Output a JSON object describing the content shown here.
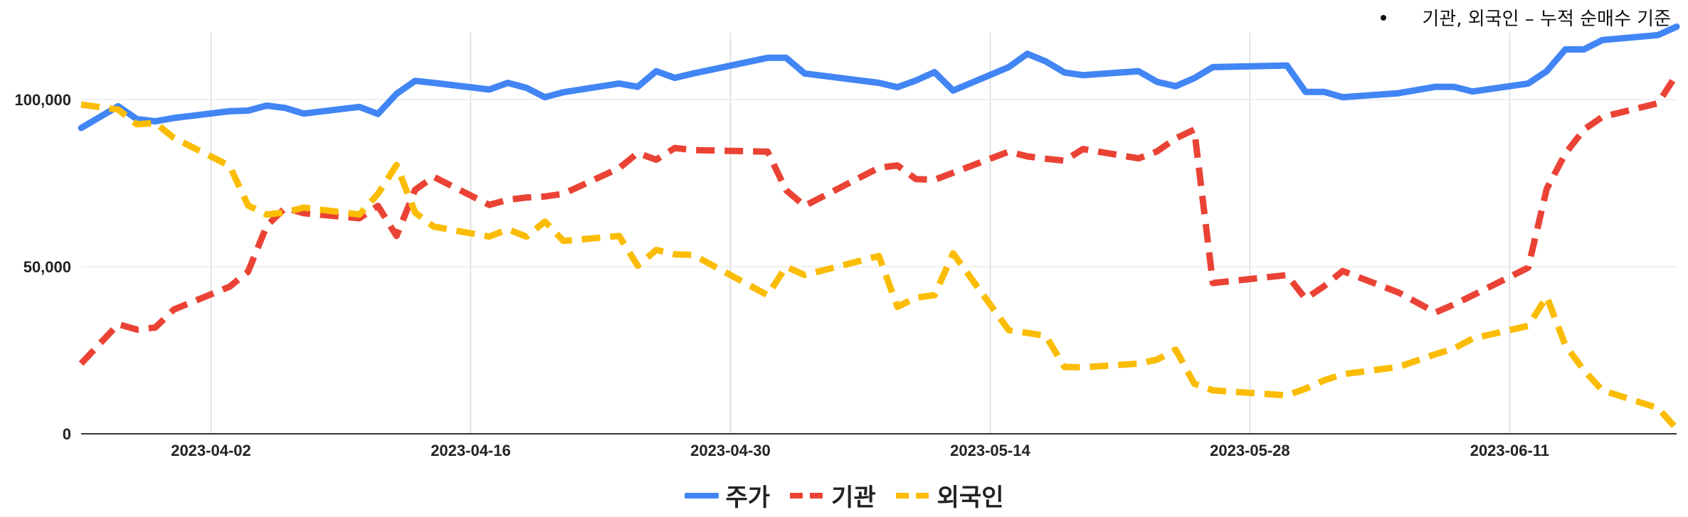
{
  "annotation": "기관, 외국인 – 누적 순매수 기준",
  "chart_data": {
    "type": "line",
    "x": [
      "2023-03-26",
      "2023-03-28",
      "2023-03-29",
      "2023-03-30",
      "2023-03-31",
      "2023-04-03",
      "2023-04-04",
      "2023-04-05",
      "2023-04-06",
      "2023-04-07",
      "2023-04-10",
      "2023-04-11",
      "2023-04-12",
      "2023-04-13",
      "2023-04-14",
      "2023-04-17",
      "2023-04-18",
      "2023-04-19",
      "2023-04-20",
      "2023-04-21",
      "2023-04-24",
      "2023-04-25",
      "2023-04-26",
      "2023-04-27",
      "2023-04-28",
      "2023-05-02",
      "2023-05-03",
      "2023-05-04",
      "2023-05-08",
      "2023-05-09",
      "2023-05-10",
      "2023-05-11",
      "2023-05-12",
      "2023-05-15",
      "2023-05-16",
      "2023-05-17",
      "2023-05-18",
      "2023-05-19",
      "2023-05-22",
      "2023-05-23",
      "2023-05-24",
      "2023-05-25",
      "2023-05-26",
      "2023-05-30",
      "2023-05-31",
      "2023-06-01",
      "2023-06-02",
      "2023-06-05",
      "2023-06-07",
      "2023-06-08",
      "2023-06-09",
      "2023-06-12",
      "2023-06-13",
      "2023-06-14",
      "2023-06-15",
      "2023-06-16",
      "2023-06-19",
      "2023-06-20"
    ],
    "series": [
      {
        "name": "주가",
        "color": "#4285F4",
        "style": "solid",
        "values": [
          91500,
          98000,
          94200,
          93500,
          94500,
          96500,
          96700,
          98200,
          97500,
          95800,
          97800,
          95700,
          101700,
          105600,
          105000,
          103000,
          105000,
          103500,
          100700,
          102200,
          104800,
          103800,
          108500,
          106500,
          107800,
          112500,
          112500,
          107800,
          105000,
          103700,
          105700,
          108200,
          102700,
          109700,
          113700,
          111400,
          108100,
          107300,
          108500,
          105300,
          104000,
          106400,
          109700,
          110200,
          102300,
          102300,
          100700,
          101900,
          103800,
          103800,
          102400,
          104800,
          108500,
          115000,
          115000,
          117800,
          119300,
          121800
        ]
      },
      {
        "name": "기관",
        "color": "#EA4335",
        "style": "dashed",
        "values": [
          21000,
          32800,
          31200,
          31800,
          37200,
          44000,
          48500,
          62200,
          67600,
          66000,
          64500,
          68200,
          59200,
          73000,
          76900,
          68500,
          70000,
          70700,
          71000,
          71800,
          79500,
          84000,
          82000,
          85500,
          84900,
          84400,
          72900,
          68200,
          79600,
          80300,
          76200,
          76000,
          78100,
          84400,
          83000,
          82300,
          81700,
          85200,
          82400,
          84500,
          88400,
          91000,
          45100,
          47500,
          40400,
          44200,
          48700,
          42300,
          36300,
          38700,
          41400,
          49700,
          73300,
          83800,
          91000,
          94800,
          98900,
          107500
        ]
      },
      {
        "name": "외국인",
        "color": "#FBBC04",
        "style": "dashed",
        "values": [
          98500,
          97000,
          92600,
          93000,
          88500,
          80200,
          68300,
          65600,
          66200,
          67700,
          65600,
          71800,
          80400,
          66200,
          62000,
          59000,
          61200,
          59000,
          63500,
          57700,
          59200,
          50300,
          55000,
          53700,
          53500,
          41500,
          50000,
          47500,
          53200,
          38000,
          40700,
          41500,
          54000,
          31000,
          30200,
          29300,
          20000,
          19900,
          21000,
          22200,
          25200,
          15000,
          13000,
          11500,
          13500,
          16000,
          17800,
          20000,
          23800,
          25500,
          28500,
          32300,
          41000,
          26500,
          19000,
          13000,
          7700,
          1500
        ]
      }
    ],
    "x_ticks": [
      "2023-04-02",
      "2023-04-16",
      "2023-04-30",
      "2023-05-14",
      "2023-05-28",
      "2023-06-11"
    ],
    "y_ticks": [
      "0",
      "50,000",
      "100,000"
    ],
    "ylim": [
      0,
      120000
    ],
    "grid": true,
    "legend": "bottom"
  }
}
